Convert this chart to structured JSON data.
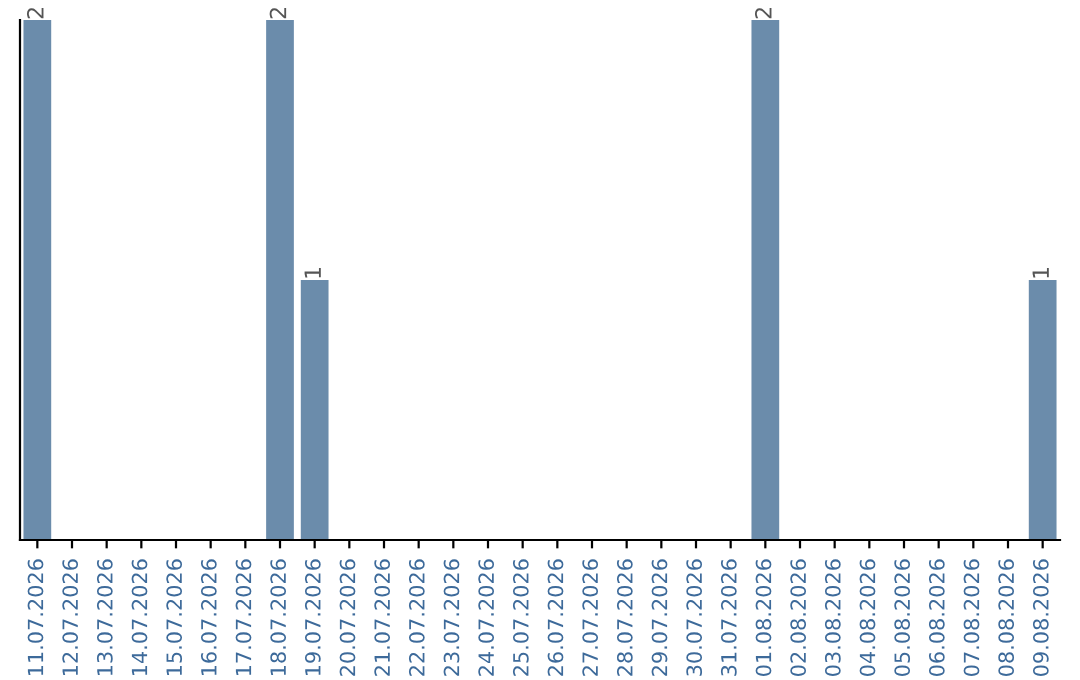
{
  "chart_data": {
    "type": "bar",
    "categories": [
      "11.07.2026",
      "12.07.2026",
      "13.07.2026",
      "14.07.2026",
      "15.07.2026",
      "16.07.2026",
      "17.07.2026",
      "18.07.2026",
      "19.07.2026",
      "20.07.2026",
      "21.07.2026",
      "22.07.2026",
      "23.07.2026",
      "24.07.2026",
      "25.07.2026",
      "26.07.2026",
      "27.07.2026",
      "28.07.2026",
      "29.07.2026",
      "30.07.2026",
      "31.07.2026",
      "01.08.2026",
      "02.08.2026",
      "03.08.2026",
      "04.08.2026",
      "05.08.2026",
      "06.08.2026",
      "07.08.2026",
      "08.08.2026",
      "09.08.2026"
    ],
    "values": [
      2,
      0,
      0,
      0,
      0,
      0,
      0,
      2,
      1,
      0,
      0,
      0,
      0,
      0,
      0,
      0,
      0,
      0,
      0,
      0,
      0,
      2,
      0,
      0,
      0,
      0,
      0,
      0,
      0,
      1
    ],
    "value_labels": [
      "2",
      null,
      null,
      null,
      null,
      null,
      null,
      "2",
      "1",
      null,
      null,
      null,
      null,
      null,
      null,
      null,
      null,
      null,
      null,
      null,
      null,
      "2",
      null,
      null,
      null,
      null,
      null,
      null,
      null,
      "1"
    ],
    "color": "#6b8cab",
    "ylim": [
      0,
      2
    ],
    "tick_labels": "x",
    "grid": false,
    "legend": false
  }
}
